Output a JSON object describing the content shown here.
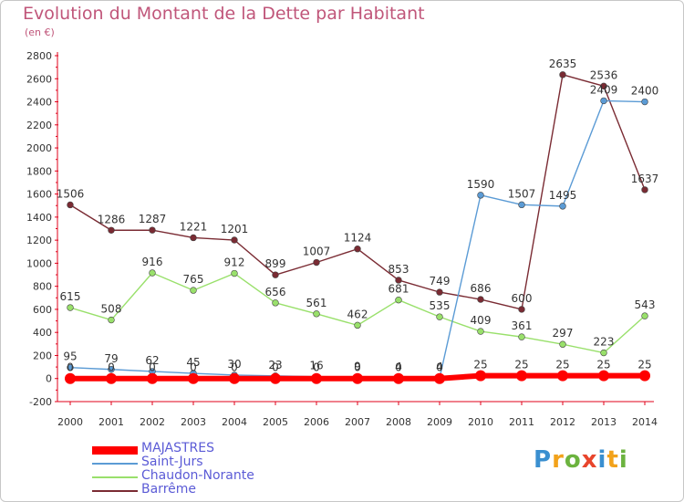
{
  "title": "Evolution du Montant de la Dette par Habitant",
  "subtitle": "(en €)",
  "brand": {
    "text": "Proxiti",
    "letters": [
      {
        "ch": "P",
        "color": "#3a8fd0"
      },
      {
        "ch": "r",
        "color": "#f2a21b"
      },
      {
        "ch": "o",
        "color": "#6cb33f"
      },
      {
        "ch": "x",
        "color": "#e8452c"
      },
      {
        "ch": "i",
        "color": "#3a8fd0"
      },
      {
        "ch": "t",
        "color": "#f2a21b"
      },
      {
        "ch": "i",
        "color": "#6cb33f"
      }
    ]
  },
  "chart_data": {
    "type": "line",
    "title": "Evolution du Montant de la Dette par Habitant",
    "subtitle": "(en €)",
    "x": [
      "2000",
      "2001",
      "2002",
      "2003",
      "2004",
      "2005",
      "2006",
      "2007",
      "2008",
      "2009",
      "2010",
      "2011",
      "2012",
      "2013",
      "2014"
    ],
    "ylim": [
      -200,
      2800
    ],
    "yticks": [
      -200,
      0,
      200,
      400,
      600,
      800,
      1000,
      1200,
      1400,
      1600,
      1800,
      2000,
      2200,
      2400,
      2600,
      2800
    ],
    "grid": false,
    "legend": "bottom-left",
    "series": [
      {
        "name": "MAJASTRES",
        "color": "#ff0000",
        "values": [
          0,
          0,
          0,
          0,
          0,
          0,
          0,
          0,
          0,
          0,
          25,
          25,
          25,
          25,
          25
        ],
        "labels": [
          "0",
          "0",
          "0",
          "0",
          "0",
          "0",
          "0",
          "0",
          "0",
          "0",
          "25",
          "25",
          "25",
          "25",
          "25"
        ]
      },
      {
        "name": "Saint-Jurs",
        "color": "#5b9bd5",
        "values": [
          95,
          79,
          62,
          45,
          30,
          23,
          16,
          9,
          4,
          4,
          1590,
          1507,
          1495,
          2409,
          2400
        ],
        "labels": [
          "95",
          "79",
          "62",
          "45",
          "30",
          "23",
          "16",
          "9",
          "4",
          "4",
          "1590",
          "1507",
          "1495",
          "2409",
          "2400"
        ]
      },
      {
        "name": "Chaudon-Norante",
        "color": "#99e06b",
        "values": [
          615,
          508,
          916,
          765,
          912,
          656,
          561,
          462,
          681,
          535,
          409,
          361,
          297,
          223,
          543
        ],
        "labels": [
          "615",
          "508",
          "916",
          "765",
          "912",
          "656",
          "561",
          "462",
          "681",
          "535",
          "409",
          "361",
          "297",
          "223",
          "543"
        ]
      },
      {
        "name": "Barrême",
        "color": "#7a2b33",
        "values": [
          1506,
          1286,
          1287,
          1221,
          1201,
          899,
          1007,
          1124,
          853,
          749,
          686,
          600,
          2635,
          2536,
          1637
        ],
        "labels": [
          "1506",
          "1286",
          "1287",
          "1221",
          "1201",
          "899",
          "1007",
          "1124",
          "853",
          "749",
          "686",
          "600",
          "2635",
          "2536",
          "1637"
        ]
      }
    ]
  }
}
